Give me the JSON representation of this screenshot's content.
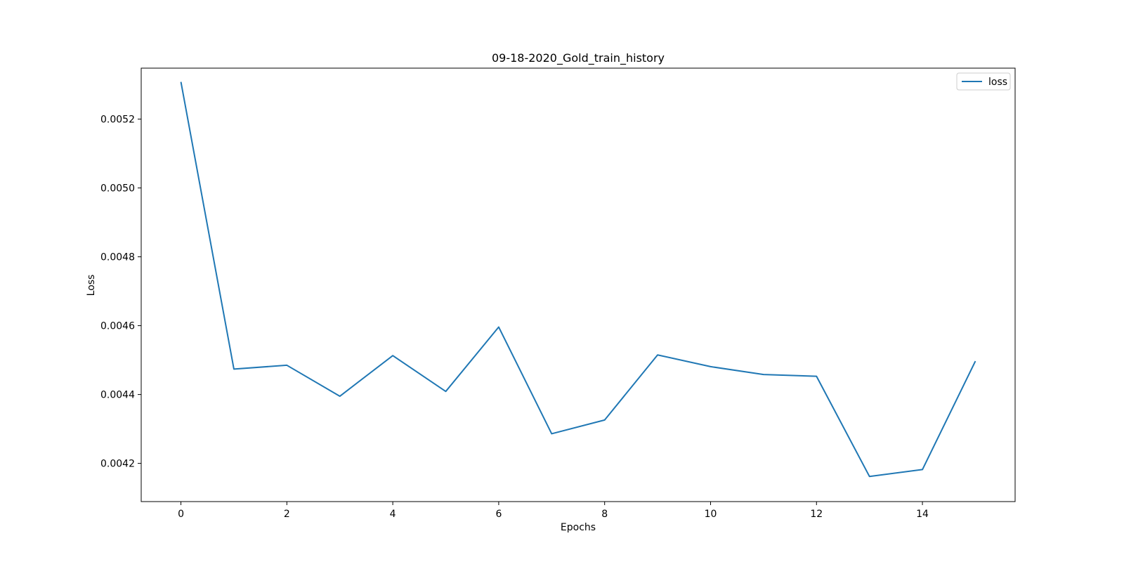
{
  "chart_data": {
    "type": "line",
    "title": "09-18-2020_Gold_train_history",
    "xlabel": "Epochs",
    "ylabel": "Loss",
    "x": [
      0,
      1,
      2,
      3,
      4,
      5,
      6,
      7,
      8,
      9,
      10,
      11,
      12,
      13,
      14,
      15
    ],
    "series": [
      {
        "name": "loss",
        "color": "#1f77b4",
        "values": [
          0.005308,
          0.004474,
          0.004485,
          0.004395,
          0.004513,
          0.004409,
          0.004596,
          0.004286,
          0.004326,
          0.004515,
          0.004481,
          0.004458,
          0.004453,
          0.004162,
          0.004182,
          0.004497
        ]
      }
    ],
    "xlim": [
      -0.75,
      15.75
    ],
    "ylim": [
      0.004089,
      0.005348
    ],
    "xticks": [
      0,
      2,
      4,
      6,
      8,
      10,
      12,
      14
    ],
    "xtick_labels": [
      "0",
      "2",
      "4",
      "6",
      "8",
      "10",
      "12",
      "14"
    ],
    "yticks": [
      0.0042,
      0.0044,
      0.0046,
      0.0048,
      0.005,
      0.0052
    ],
    "ytick_labels": [
      "0.0042",
      "0.0044",
      "0.0046",
      "0.0048",
      "0.0050",
      "0.0052"
    ],
    "grid": false,
    "legend_position": "top-right"
  }
}
